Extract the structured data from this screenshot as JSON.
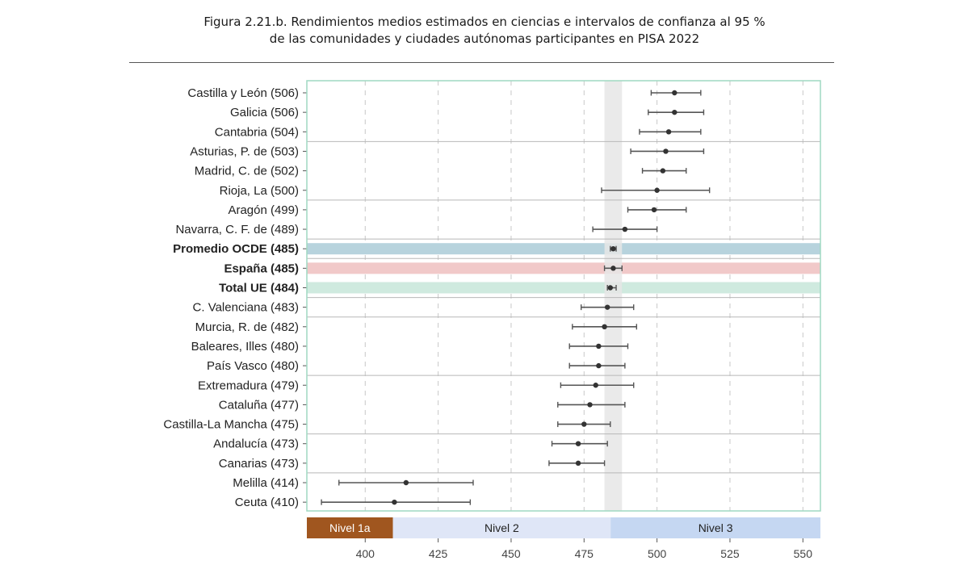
{
  "title": {
    "line1": "Figura 2.21.b. Rendimientos medios estimados en ciencias e intervalos de confianza al 95 %",
    "line2": "de las comunidades y ciudades autónomas participantes en PISA 2022"
  },
  "chart_data": {
    "type": "scatter",
    "title": "Figura 2.21.b. Rendimientos medios estimados en ciencias e intervalos de confianza al 95 % de las comunidades y ciudades autónomas participantes en PISA 2022",
    "xlim": [
      380,
      556
    ],
    "xticks": [
      400,
      425,
      450,
      475,
      500,
      525,
      550
    ],
    "grid": "vertical dashed",
    "reference_band": [
      482,
      488
    ],
    "categories": [
      {
        "label": "Castilla y León (506)",
        "mean": 506,
        "low": 498,
        "high": 515,
        "bold": false
      },
      {
        "label": "Galicia (506)",
        "mean": 506,
        "low": 497,
        "high": 516,
        "bold": false
      },
      {
        "label": "Cantabria (504)",
        "mean": 504,
        "low": 494,
        "high": 515,
        "bold": false
      },
      {
        "label": "Asturias, P. de (503)",
        "mean": 503,
        "low": 491,
        "high": 516,
        "bold": false
      },
      {
        "label": "Madrid, C. de (502)",
        "mean": 502,
        "low": 495,
        "high": 510,
        "bold": false
      },
      {
        "label": "Rioja, La (500)",
        "mean": 500,
        "low": 481,
        "high": 518,
        "bold": false
      },
      {
        "label": "Aragón (499)",
        "mean": 499,
        "low": 490,
        "high": 510,
        "bold": false
      },
      {
        "label": "Navarra, C. F. de (489)",
        "mean": 489,
        "low": 478,
        "high": 500,
        "bold": false
      },
      {
        "label": "Promedio OCDE (485)",
        "mean": 485,
        "low": 484,
        "high": 486,
        "bold": true,
        "band": "#b7d3dd"
      },
      {
        "label": "España (485)",
        "mean": 485,
        "low": 482,
        "high": 488,
        "bold": true,
        "band": "#f1c9c9"
      },
      {
        "label": "Total UE (484)",
        "mean": 484,
        "low": 483,
        "high": 486,
        "bold": true,
        "band": "#cfeadf"
      },
      {
        "label": "C. Valenciana (483)",
        "mean": 483,
        "low": 474,
        "high": 492,
        "bold": false
      },
      {
        "label": "Murcia, R. de (482)",
        "mean": 482,
        "low": 471,
        "high": 493,
        "bold": false
      },
      {
        "label": "Baleares, Illes (480)",
        "mean": 480,
        "low": 470,
        "high": 490,
        "bold": false
      },
      {
        "label": "País Vasco (480)",
        "mean": 480,
        "low": 470,
        "high": 489,
        "bold": false
      },
      {
        "label": "Extremadura (479)",
        "mean": 479,
        "low": 467,
        "high": 492,
        "bold": false
      },
      {
        "label": "Cataluña (477)",
        "mean": 477,
        "low": 466,
        "high": 489,
        "bold": false
      },
      {
        "label": "Castilla-La Mancha (475)",
        "mean": 475,
        "low": 466,
        "high": 484,
        "bold": false
      },
      {
        "label": "Andalucía (473)",
        "mean": 473,
        "low": 464,
        "high": 483,
        "bold": false
      },
      {
        "label": "Canarias (473)",
        "mean": 473,
        "low": 463,
        "high": 482,
        "bold": false
      },
      {
        "label": "Melilla (414)",
        "mean": 414,
        "low": 391,
        "high": 437,
        "bold": false
      },
      {
        "label": "Ceuta (410)",
        "mean": 410,
        "low": 385,
        "high": 436,
        "bold": false
      }
    ],
    "group_separators_after": [
      2,
      5,
      7,
      8,
      10,
      11,
      14,
      17,
      19
    ],
    "levels": [
      {
        "label": "Nivel 1a",
        "from": 380,
        "to": 409.5,
        "color": "#a0561f",
        "text_color": "#ffffff"
      },
      {
        "label": "Nivel 2",
        "from": 409.5,
        "to": 484.1,
        "color": "#dfe6f7",
        "text_color": "#222222"
      },
      {
        "label": "Nivel 3",
        "from": 484.1,
        "to": 556,
        "color": "#c5d7f2",
        "text_color": "#222222"
      }
    ],
    "colors": {
      "frame": "#9fd9c2",
      "point": "#333333",
      "grid": "#c8c8c8",
      "band": "#e6e6e6"
    }
  }
}
